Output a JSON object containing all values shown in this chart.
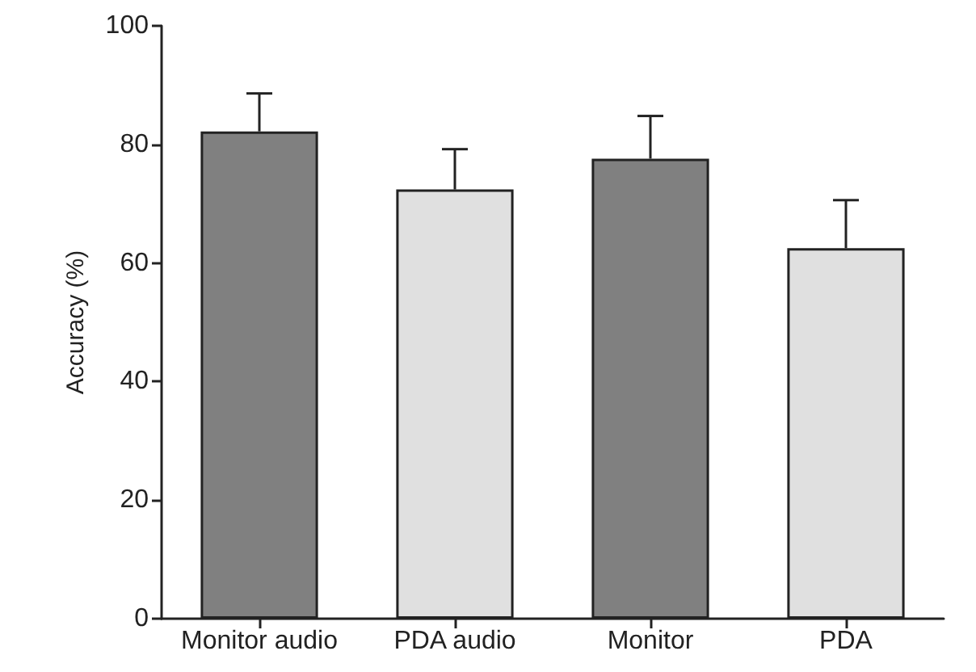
{
  "chart_data": {
    "type": "bar",
    "ylabel": "Accuracy (%)",
    "categories": [
      "Monitor audio",
      "PDA audio",
      "Monitor",
      "PDA"
    ],
    "values": [
      82.2,
      72.4,
      77.6,
      62.5
    ],
    "colors": [
      "#808080",
      "#e0e0e0",
      "#808080",
      "#e0e0e0"
    ],
    "errors": [
      [
        82.2,
        88.6
      ],
      [
        72.4,
        79.2
      ],
      [
        77.6,
        84.8
      ],
      [
        62.5,
        70.6
      ]
    ],
    "ylim": [
      0,
      100
    ],
    "yticks": [
      0,
      20,
      40,
      60,
      80,
      100
    ],
    "grid": false
  }
}
